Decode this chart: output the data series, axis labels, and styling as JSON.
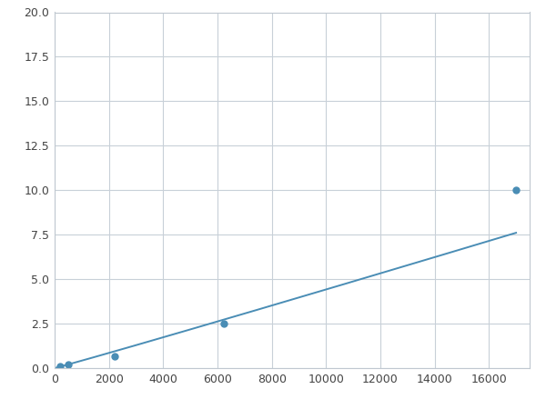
{
  "x_points": [
    200,
    500,
    2200,
    6250,
    17000
  ],
  "y_points": [
    0.1,
    0.2,
    0.65,
    2.5,
    10.0
  ],
  "line_color": "#4a8db5",
  "marker_color": "#4a8db5",
  "marker_size": 5,
  "linewidth": 1.4,
  "xlim": [
    0,
    17500
  ],
  "ylim": [
    0,
    20
  ],
  "xticks": [
    0,
    2000,
    4000,
    6000,
    8000,
    10000,
    12000,
    14000,
    16000
  ],
  "yticks": [
    0.0,
    2.5,
    5.0,
    7.5,
    10.0,
    12.5,
    15.0,
    17.5,
    20.0
  ],
  "grid_color": "#c8d0d8",
  "bg_color": "#ffffff",
  "fig_bg_color": "#ffffff"
}
